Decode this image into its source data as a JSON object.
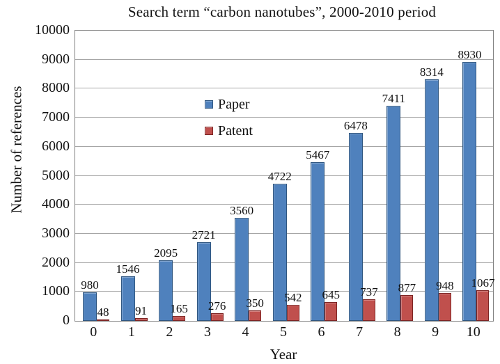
{
  "title": "Search term “carbon nanotubes”, 2000-2010 period",
  "chart_data": {
    "type": "bar",
    "title": "Search term “carbon nanotubes”, 2000-2010 period",
    "xlabel": "Year",
    "ylabel": "Number of references",
    "categories": [
      "0",
      "1",
      "2",
      "3",
      "4",
      "5",
      "6",
      "7",
      "8",
      "9",
      "10"
    ],
    "series": [
      {
        "name": "Paper",
        "color": "#4F81BD",
        "border_color": "#2F5680",
        "values": [
          980,
          1546,
          2095,
          2721,
          3560,
          4722,
          5467,
          6478,
          7411,
          8314,
          8930
        ]
      },
      {
        "name": "Patent",
        "color": "#C0504D",
        "border_color": "#7D2423",
        "values": [
          48,
          91,
          165,
          276,
          350,
          542,
          645,
          737,
          877,
          948,
          1067
        ]
      }
    ],
    "ylim": [
      0,
      10000
    ],
    "y_ticks": [
      0,
      1000,
      2000,
      3000,
      4000,
      5000,
      6000,
      7000,
      8000,
      9000,
      10000
    ],
    "grid": true,
    "value_labels": true,
    "legend_position": "upper-left-inside",
    "colors": {
      "gridline": "#a6a6a6",
      "axis_border": "#7f7f7f",
      "text": "#111111",
      "background": "#ffffff"
    }
  }
}
